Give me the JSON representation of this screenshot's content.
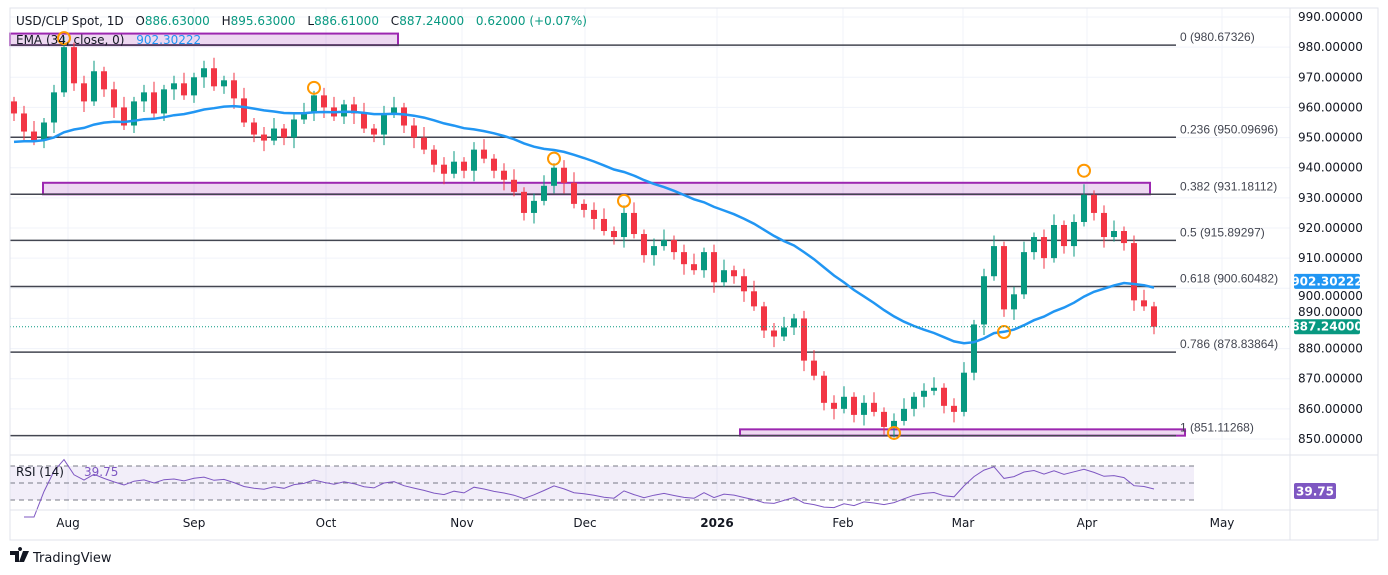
{
  "header": {
    "symbol": "USD/CLP Spot, 1D",
    "o_label": "O",
    "open": "886.63000",
    "h_label": "H",
    "high": "895.63000",
    "l_label": "L",
    "low": "886.61000",
    "c_label": "C",
    "close": "887.24000",
    "change": "0.62000 (+0.07%)",
    "ema_label": "EMA (34, close, 0)",
    "ema_value": "902.30222"
  },
  "colors": {
    "up": "#089981",
    "down": "#f23645",
    "ema": "#2196f3",
    "rsi": "#7e57c2",
    "zone": "#9c27b0",
    "circle": "#ff9800"
  },
  "chart_data": {
    "type": "candlestick",
    "title": "USD/CLP Spot, 1D",
    "ylim": [
      845,
      992
    ],
    "y_ticks": [
      "990.00000",
      "980.00000",
      "970.00000",
      "960.00000",
      "950.00000",
      "940.00000",
      "930.00000",
      "920.00000",
      "910.00000",
      "900.00000",
      "890.00000",
      "880.00000",
      "870.00000",
      "860.00000",
      "850.00000"
    ],
    "x_ticks": [
      "Aug",
      "Sep",
      "Oct",
      "Nov",
      "Dec",
      "2026",
      "Feb",
      "Mar",
      "Apr",
      "May"
    ],
    "closes": [
      958,
      952,
      949,
      955,
      965,
      980,
      968,
      962,
      972,
      966,
      960,
      954,
      962,
      965,
      958,
      966,
      968,
      964,
      970,
      973,
      967,
      969,
      963,
      955,
      951,
      949,
      953,
      950,
      956,
      958,
      964,
      960,
      957,
      961,
      958,
      953,
      951,
      958,
      960,
      954,
      950,
      946,
      941,
      938,
      942,
      939,
      946,
      943,
      939,
      936,
      932,
      925,
      929,
      934,
      940,
      935,
      928,
      926,
      923,
      919,
      917,
      925,
      918,
      911,
      914,
      916,
      912,
      908,
      906,
      912,
      902,
      906,
      904,
      899,
      894,
      886,
      884,
      887,
      890,
      876,
      871,
      862,
      860,
      864,
      858,
      862,
      859,
      854,
      856,
      860,
      864,
      866,
      867,
      861,
      859,
      872,
      888,
      904,
      914,
      893,
      898,
      912,
      917,
      910,
      921,
      914,
      922,
      931,
      925,
      917,
      919,
      915,
      896,
      894,
      887.24
    ],
    "ema_period": 34,
    "ema_seed": 948,
    "fib_levels": [
      {
        "ratio": "0",
        "price": 980.67326,
        "label": "0 (980.67326)"
      },
      {
        "ratio": "0.236",
        "price": 950.09696,
        "label": "0.236 (950.09696)"
      },
      {
        "ratio": "0.382",
        "price": 931.18112,
        "label": "0.382 (931.18112)"
      },
      {
        "ratio": "0.5",
        "price": 915.89297,
        "label": "0.5 (915.89297)"
      },
      {
        "ratio": "0.618",
        "price": 900.60482,
        "label": "0.618 (900.60482)"
      },
      {
        "ratio": "0.786",
        "price": 878.83864,
        "label": "0.786 (878.83864)"
      },
      {
        "ratio": "1",
        "price": 851.11268,
        "label": "1 (851.11268)"
      }
    ],
    "zones": [
      {
        "from": 980.67,
        "to": 984.5
      },
      {
        "from": 931.18,
        "to": 935.0
      },
      {
        "from": 851.11,
        "to": 853.2
      }
    ],
    "swing_points": [
      {
        "candle": 5,
        "price": 983
      },
      {
        "candle": 30,
        "price": 966.5
      },
      {
        "candle": 54,
        "price": 943
      },
      {
        "candle": 61,
        "price": 929
      },
      {
        "candle": 107,
        "price": 939
      },
      {
        "candle": 99,
        "price": 885.5
      },
      {
        "candle": 88,
        "price": 852
      }
    ],
    "last_price_label": "887.24000",
    "ema_price_label": "902.30222",
    "rsi": {
      "label": "RSI (14)",
      "value": "39.75",
      "levels": [
        70,
        50,
        30
      ]
    }
  },
  "footer": {
    "brand": "TradingView"
  }
}
